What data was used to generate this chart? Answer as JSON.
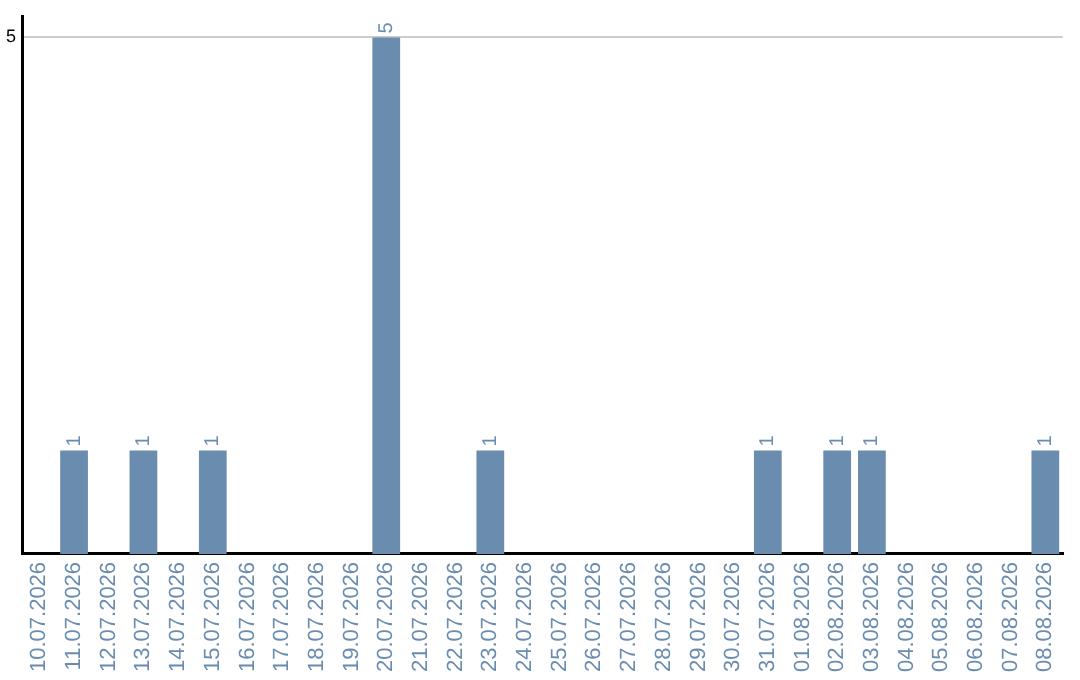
{
  "chart_data": {
    "type": "bar",
    "categories": [
      "10.07.2026",
      "11.07.2026",
      "12.07.2026",
      "13.07.2026",
      "14.07.2026",
      "15.07.2026",
      "16.07.2026",
      "17.07.2026",
      "18.07.2026",
      "19.07.2026",
      "20.07.2026",
      "21.07.2026",
      "22.07.2026",
      "23.07.2026",
      "24.07.2026",
      "25.07.2026",
      "26.07.2026",
      "27.07.2026",
      "28.07.2026",
      "29.07.2026",
      "30.07.2026",
      "31.07.2026",
      "01.08.2026",
      "02.08.2026",
      "03.08.2026",
      "04.08.2026",
      "05.08.2026",
      "06.08.2026",
      "07.08.2026",
      "08.08.2026"
    ],
    "values": [
      0,
      1,
      0,
      1,
      0,
      1,
      0,
      0,
      0,
      0,
      5,
      0,
      0,
      1,
      0,
      0,
      0,
      0,
      0,
      0,
      0,
      1,
      0,
      1,
      1,
      0,
      0,
      0,
      0,
      1
    ],
    "value_labels": [
      null,
      "1",
      null,
      "1",
      null,
      "1",
      null,
      null,
      null,
      null,
      "5",
      null,
      null,
      "1",
      null,
      null,
      null,
      null,
      null,
      null,
      null,
      "1",
      null,
      "1",
      "1",
      null,
      null,
      null,
      null,
      "1"
    ],
    "color": "#6a8caf",
    "ylim": [
      0,
      5.2
    ],
    "yticks": [
      5
    ],
    "grid": "y",
    "legend": false
  }
}
